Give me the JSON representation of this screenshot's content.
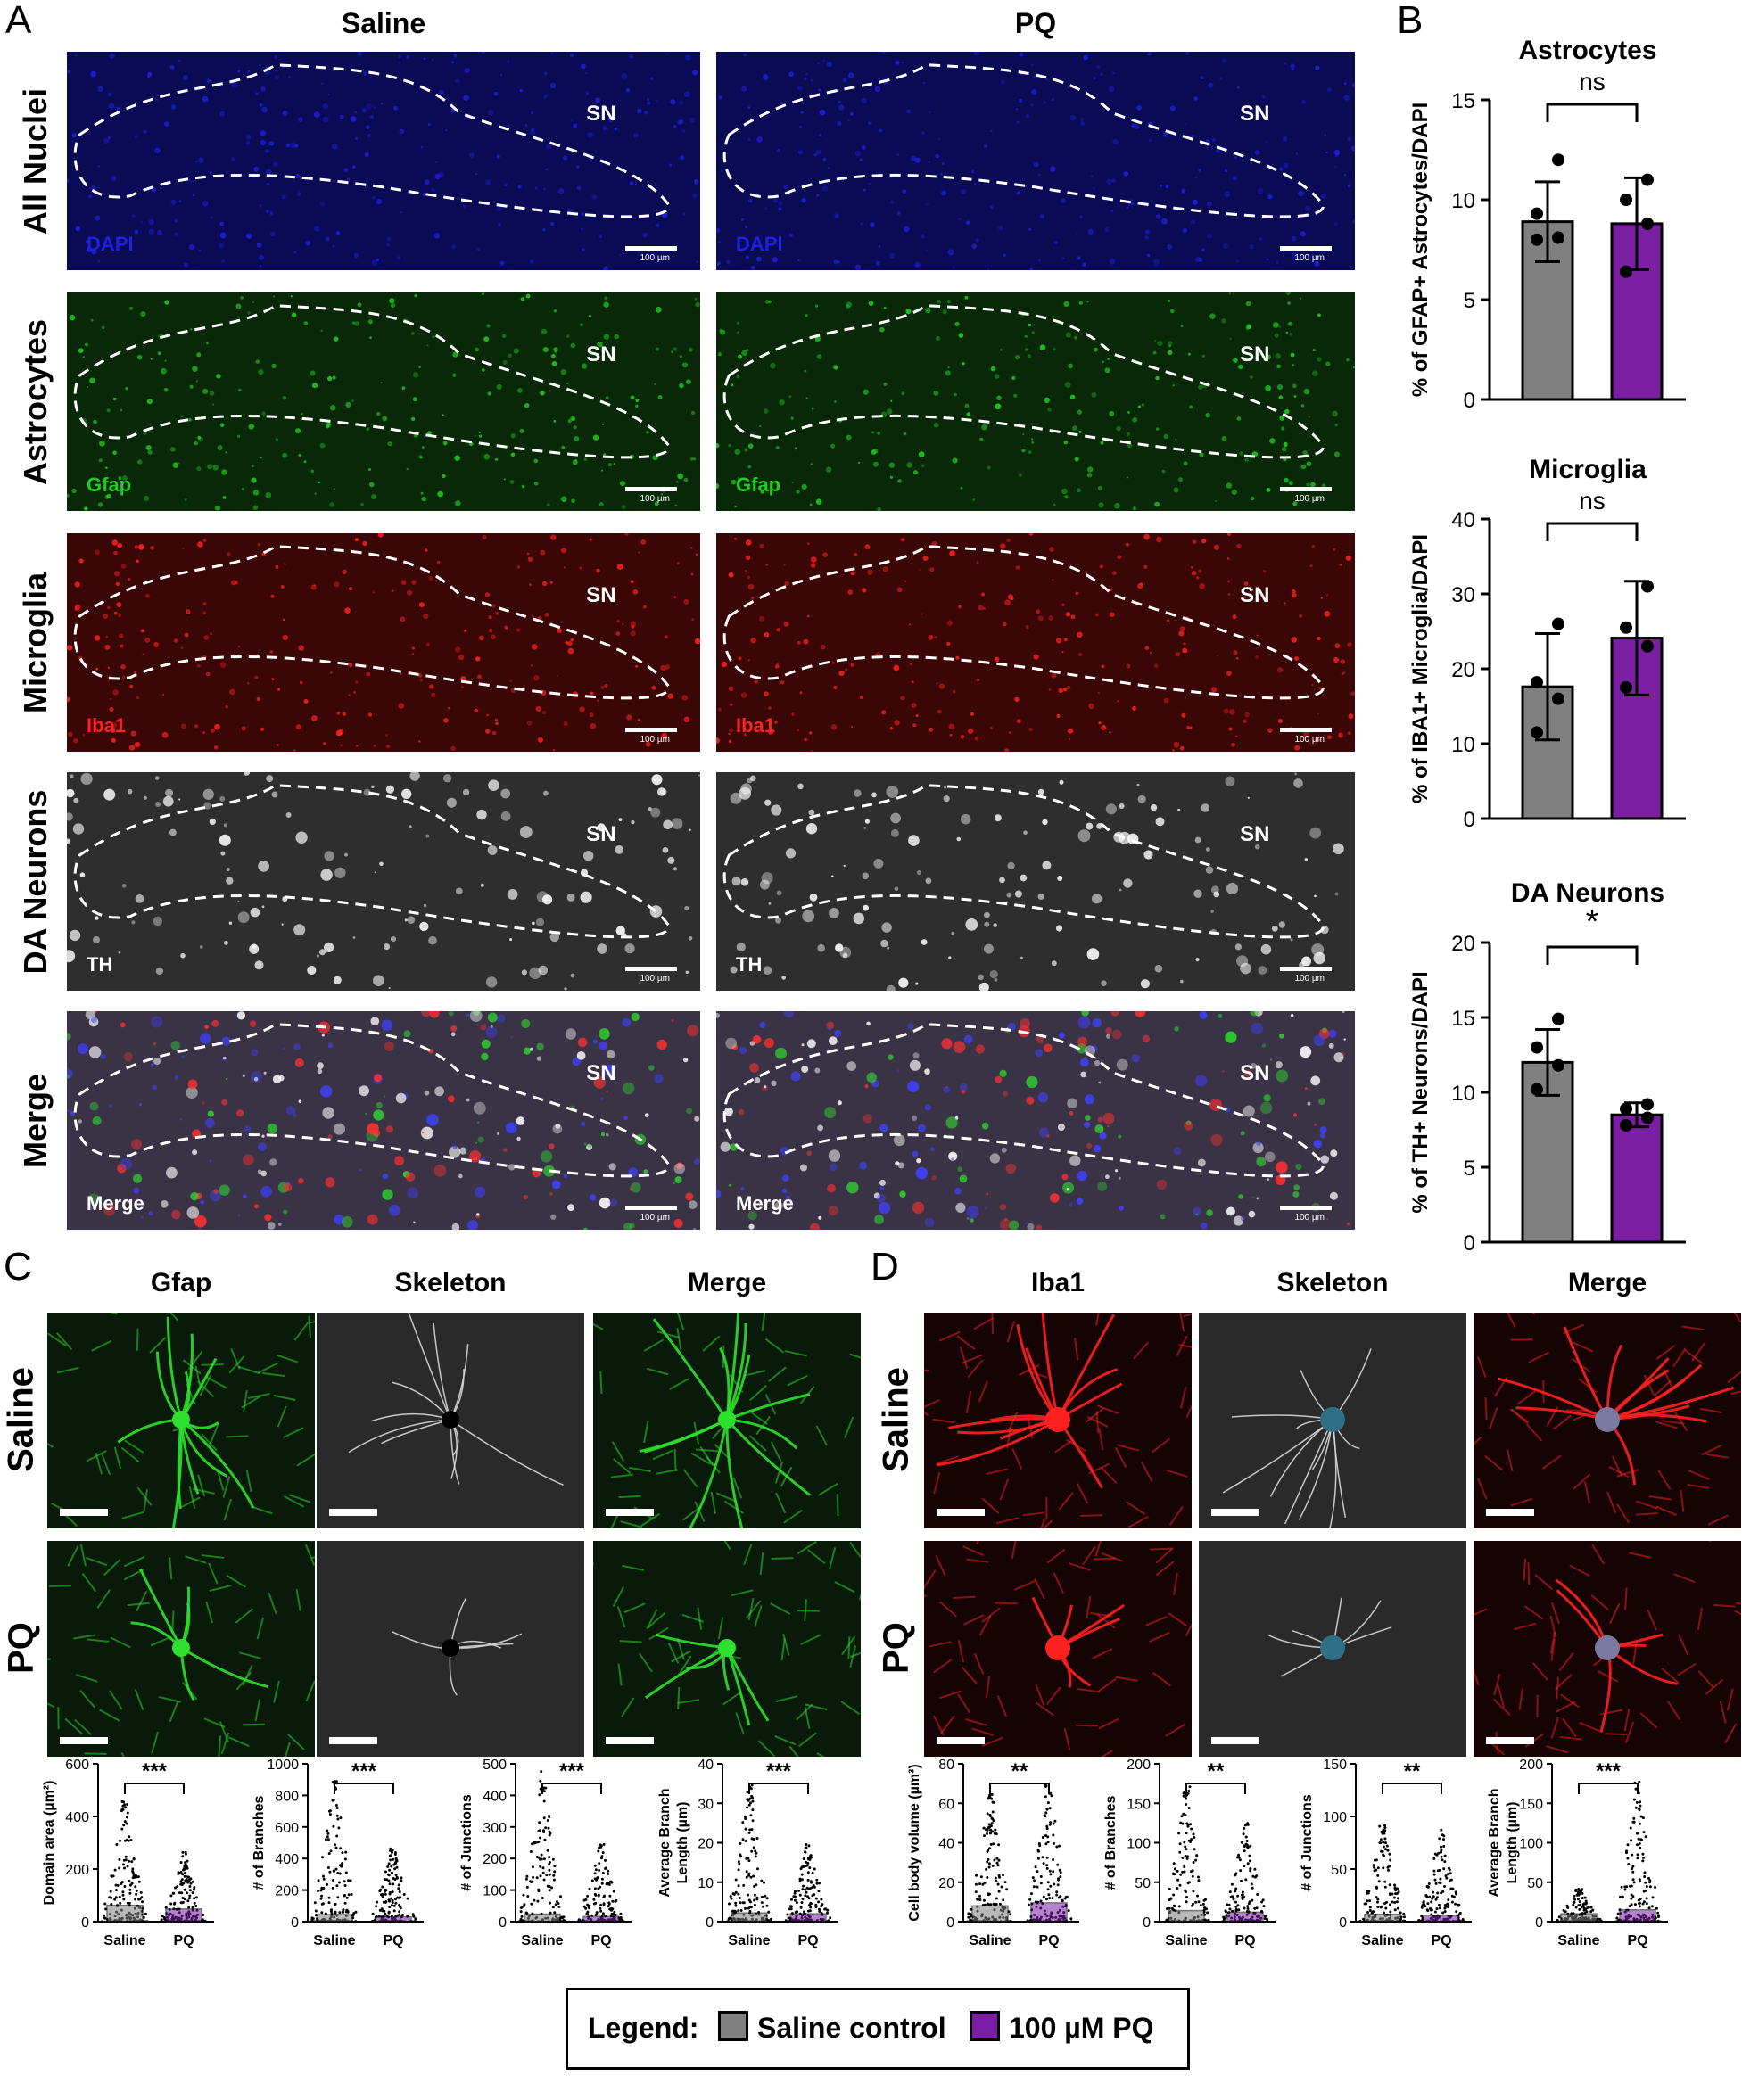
{
  "panel_letters": {
    "a": "A",
    "b": "B",
    "c": "C",
    "d": "D"
  },
  "panelA": {
    "columns": [
      "Saline",
      "PQ"
    ],
    "rows": [
      {
        "label": "All Nuclei",
        "channel": "DAPI",
        "channel_color": "#2020e0",
        "bg": "#0a0a55"
      },
      {
        "label": "Astrocytes",
        "channel": "Gfap",
        "channel_color": "#22cc22",
        "bg": "#082808"
      },
      {
        "label": "Microglia",
        "channel": "Iba1",
        "channel_color": "#ff2020",
        "bg": "#3a0606"
      },
      {
        "label": "DA Neurons",
        "channel": "TH",
        "channel_color": "#ffffff",
        "bg": "#2e2e2e"
      },
      {
        "label": "Merge",
        "channel": "Merge",
        "channel_color": "#ffffff",
        "bg": "#3a3346"
      }
    ],
    "region_label": "SN",
    "scale_label": "100 µm"
  },
  "chart_data": [
    {
      "type": "bar",
      "title": "Astrocytes",
      "ylabel": "% of  GFAP+ Astrocytes/DAPI",
      "categories": [
        "Saline control",
        "100 µM PQ"
      ],
      "values": [
        8.9,
        8.8
      ],
      "error": [
        2.0,
        2.3
      ],
      "points": [
        [
          8.0,
          8.1,
          9.3,
          12.0
        ],
        [
          6.4,
          8.8,
          10.0,
          11.0
        ]
      ],
      "ylim": [
        0,
        15
      ],
      "yticks": [
        0,
        5,
        10,
        15
      ],
      "significance": "ns"
    },
    {
      "type": "bar",
      "title": "Microglia",
      "ylabel": "% of  IBA1+ Microglia/DAPI",
      "categories": [
        "Saline control",
        "100 µM PQ"
      ],
      "values": [
        17.6,
        24.1
      ],
      "error": [
        7.1,
        7.6
      ],
      "points": [
        [
          11.5,
          16.0,
          18.2,
          26.0
        ],
        [
          17.5,
          23.0,
          25.5,
          31.0
        ]
      ],
      "ylim": [
        0,
        40
      ],
      "yticks": [
        0,
        10,
        20,
        30,
        40
      ],
      "significance": "ns"
    },
    {
      "type": "bar",
      "title": "DA Neurons",
      "ylabel": "% of  TH+ Neurons/DAPI",
      "categories": [
        "Saline control",
        "100 µM PQ"
      ],
      "values": [
        12.0,
        8.5
      ],
      "error": [
        2.2,
        0.8
      ],
      "points": [
        [
          10.2,
          11.8,
          13.0,
          14.9
        ],
        [
          7.8,
          8.3,
          8.9,
          9.2
        ]
      ],
      "ylim": [
        0,
        20
      ],
      "yticks": [
        0,
        5,
        10,
        15,
        20
      ],
      "significance": "*"
    },
    {
      "type": "scatter",
      "ylabel": "Domain area (µm²)",
      "categories": [
        "Saline",
        "PQ"
      ],
      "values": [
        62,
        48
      ],
      "max": [
        470,
        265
      ],
      "ylim": [
        0,
        600
      ],
      "yticks": [
        0,
        200,
        400,
        600
      ],
      "significance": "***"
    },
    {
      "type": "scatter",
      "ylabel": "# of  Branches",
      "categories": [
        "Saline",
        "PQ"
      ],
      "values": [
        45,
        30
      ],
      "max": [
        900,
        470
      ],
      "ylim": [
        0,
        1000
      ],
      "yticks": [
        0,
        200,
        400,
        600,
        800,
        1000
      ],
      "significance": "***"
    },
    {
      "type": "scatter",
      "ylabel": "# of  Junctions",
      "categories": [
        "Saline",
        "PQ"
      ],
      "values": [
        24,
        16
      ],
      "max": [
        480,
        250
      ],
      "ylim": [
        0,
        500
      ],
      "yticks": [
        0,
        100,
        200,
        300,
        400,
        500
      ],
      "significance": "***"
    },
    {
      "type": "scatter",
      "ylabel": "Average Branch Length (µm)",
      "categories": [
        "Saline",
        "PQ"
      ],
      "values": [
        2.2,
        2.0
      ],
      "max": [
        35,
        20
      ],
      "ylim": [
        0,
        40
      ],
      "yticks": [
        0,
        10,
        20,
        30,
        40
      ],
      "significance": "***"
    },
    {
      "type": "scatter",
      "ylabel": "Cell body volume (µm³)",
      "categories": [
        "Saline",
        "PQ"
      ],
      "values": [
        8,
        9.5
      ],
      "max": [
        65,
        70
      ],
      "ylim": [
        0,
        80
      ],
      "yticks": [
        0,
        20,
        40,
        60,
        80
      ],
      "significance": "**"
    },
    {
      "type": "scatter",
      "ylabel": "# of  Branches",
      "categories": [
        "Saline",
        "PQ"
      ],
      "values": [
        14,
        12
      ],
      "max": [
        172,
        125
      ],
      "ylim": [
        0,
        200
      ],
      "yticks": [
        0,
        50,
        100,
        150,
        200
      ],
      "significance": "**"
    },
    {
      "type": "scatter",
      "ylabel": "# of  Junctions",
      "categories": [
        "Saline",
        "PQ"
      ],
      "values": [
        7,
        6
      ],
      "max": [
        95,
        88
      ],
      "ylim": [
        0,
        150
      ],
      "yticks": [
        0,
        50,
        100,
        150
      ],
      "significance": "**"
    },
    {
      "type": "scatter",
      "ylabel": "Average Branch Length (µm)",
      "categories": [
        "Saline",
        "PQ"
      ],
      "values": [
        10,
        15
      ],
      "max": [
        42,
        180
      ],
      "ylim": [
        0,
        200
      ],
      "yticks": [
        0,
        50,
        100,
        150,
        200
      ],
      "significance": "***"
    }
  ],
  "panelC": {
    "columns": [
      "Gfap",
      "Skeleton",
      "Merge"
    ],
    "rows": [
      "Saline",
      "PQ"
    ]
  },
  "panelD": {
    "columns": [
      "Iba1",
      "Skeleton",
      "Merge"
    ],
    "rows": [
      "Saline",
      "PQ"
    ]
  },
  "legend": {
    "title": "Legend:",
    "items": [
      {
        "label": "Saline control",
        "color": "#808080"
      },
      {
        "label": "100 µM PQ",
        "color": "#7a1fa2"
      }
    ]
  }
}
